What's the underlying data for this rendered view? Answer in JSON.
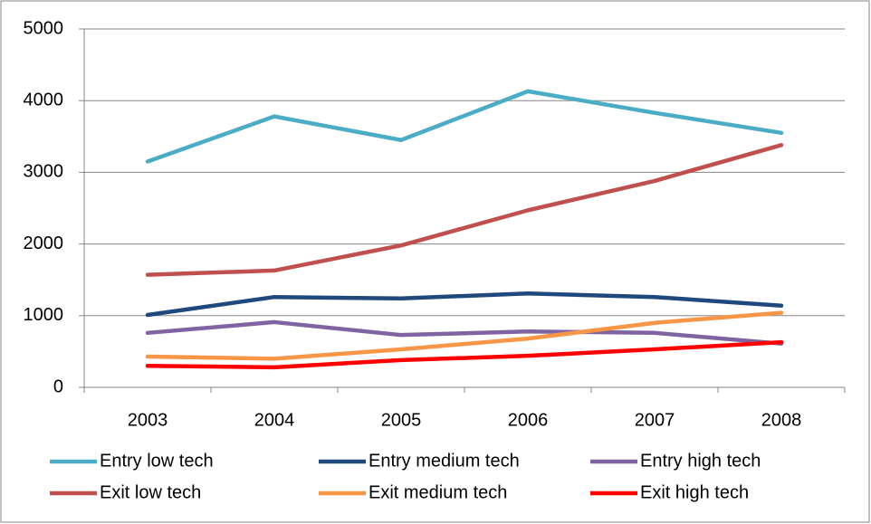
{
  "chart_data": {
    "type": "line",
    "categories": [
      "2003",
      "2004",
      "2005",
      "2006",
      "2007",
      "2008"
    ],
    "series": [
      {
        "name": "Entry low tech",
        "color": "#4bacc6",
        "values": [
          3150,
          3780,
          3450,
          4130,
          3830,
          3550
        ]
      },
      {
        "name": "Entry medium tech",
        "color": "#1f497d",
        "values": [
          1010,
          1260,
          1240,
          1310,
          1260,
          1140
        ]
      },
      {
        "name": "Entry high tech",
        "color": "#8064a2",
        "values": [
          760,
          910,
          730,
          780,
          760,
          610
        ]
      },
      {
        "name": "Exit low tech",
        "color": "#c0504d",
        "values": [
          1570,
          1630,
          1980,
          2470,
          2880,
          3380
        ]
      },
      {
        "name": "Exit medium tech",
        "color": "#f79646",
        "values": [
          430,
          400,
          530,
          680,
          900,
          1040
        ]
      },
      {
        "name": "Exit high tech",
        "color": "#ff0000",
        "values": [
          300,
          280,
          380,
          440,
          530,
          630
        ]
      }
    ],
    "ylim": [
      0,
      5000
    ],
    "yticks": [
      0,
      1000,
      2000,
      3000,
      4000,
      5000
    ],
    "grid": true,
    "legend": "bottom"
  }
}
